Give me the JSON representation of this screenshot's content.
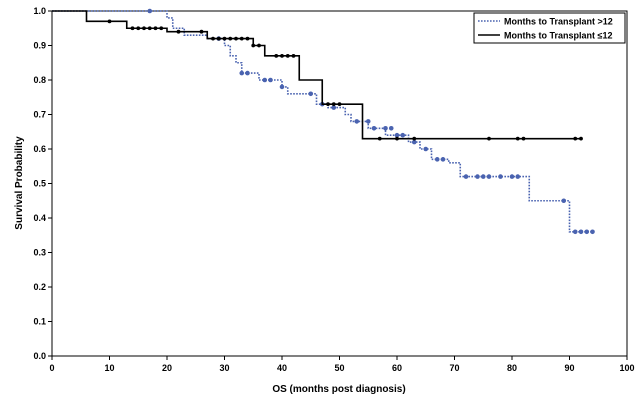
{
  "chart_data": {
    "type": "line",
    "subtype": "kaplan-meier step curve",
    "xlabel": "OS (months post diagnosis)",
    "ylabel": "Survival Probability",
    "xlim": [
      0,
      100
    ],
    "ylim": [
      0,
      1.0
    ],
    "x_ticks": [
      "0",
      "10",
      "20",
      "30",
      "40",
      "50",
      "60",
      "70",
      "80",
      "90",
      "100"
    ],
    "y_ticks": [
      "0.0",
      "0.1",
      "0.2",
      "0.3",
      "0.4",
      "0.5",
      "0.6",
      "0.7",
      "0.8",
      "0.9",
      "1.0"
    ],
    "grid": false,
    "legend_position": "top-right",
    "series": [
      {
        "name": "Months to Transplant >12",
        "color": "#4a63b0",
        "line_style": "dotted",
        "steps": [
          [
            0,
            1.0
          ],
          [
            20,
            0.98
          ],
          [
            21,
            0.95
          ],
          [
            23,
            0.93
          ],
          [
            27,
            0.92
          ],
          [
            30,
            0.9
          ],
          [
            31,
            0.87
          ],
          [
            32,
            0.85
          ],
          [
            33,
            0.82
          ],
          [
            36,
            0.8
          ],
          [
            40,
            0.78
          ],
          [
            41,
            0.76
          ],
          [
            46,
            0.73
          ],
          [
            48,
            0.72
          ],
          [
            51,
            0.7
          ],
          [
            52,
            0.68
          ],
          [
            55,
            0.66
          ],
          [
            58,
            0.64
          ],
          [
            62,
            0.62
          ],
          [
            64,
            0.6
          ],
          [
            66,
            0.57
          ],
          [
            69,
            0.56
          ],
          [
            71,
            0.52
          ],
          [
            82,
            0.52
          ],
          [
            83,
            0.45
          ],
          [
            89,
            0.45
          ],
          [
            90,
            0.36
          ],
          [
            94,
            0.36
          ]
        ],
        "censored": [
          [
            17,
            1.0
          ],
          [
            29,
            0.92
          ],
          [
            33,
            0.82
          ],
          [
            34,
            0.82
          ],
          [
            37,
            0.8
          ],
          [
            38,
            0.8
          ],
          [
            40,
            0.78
          ],
          [
            45,
            0.76
          ],
          [
            47,
            0.73
          ],
          [
            49,
            0.72
          ],
          [
            53,
            0.68
          ],
          [
            55,
            0.68
          ],
          [
            56,
            0.66
          ],
          [
            58,
            0.66
          ],
          [
            59,
            0.66
          ],
          [
            60,
            0.64
          ],
          [
            61,
            0.64
          ],
          [
            63,
            0.62
          ],
          [
            65,
            0.6
          ],
          [
            67,
            0.57
          ],
          [
            68,
            0.57
          ],
          [
            72,
            0.52
          ],
          [
            74,
            0.52
          ],
          [
            75,
            0.52
          ],
          [
            76,
            0.52
          ],
          [
            78,
            0.52
          ],
          [
            80,
            0.52
          ],
          [
            81,
            0.52
          ],
          [
            89,
            0.45
          ],
          [
            91,
            0.36
          ],
          [
            92,
            0.36
          ],
          [
            93,
            0.36
          ],
          [
            94,
            0.36
          ]
        ]
      },
      {
        "name": "Months to Transplant ≤12",
        "color": "#000000",
        "line_style": "solid",
        "steps": [
          [
            0,
            1.0
          ],
          [
            6,
            0.97
          ],
          [
            9,
            0.97
          ],
          [
            13,
            0.95
          ],
          [
            19,
            0.95
          ],
          [
            20,
            0.94
          ],
          [
            26,
            0.94
          ],
          [
            27,
            0.92
          ],
          [
            35,
            0.9
          ],
          [
            37,
            0.87
          ],
          [
            43,
            0.8
          ],
          [
            47,
            0.73
          ],
          [
            53,
            0.73
          ],
          [
            54,
            0.63
          ],
          [
            92,
            0.63
          ]
        ],
        "censored": [
          [
            10,
            0.97
          ],
          [
            14,
            0.95
          ],
          [
            15,
            0.95
          ],
          [
            16,
            0.95
          ],
          [
            17,
            0.95
          ],
          [
            18,
            0.95
          ],
          [
            19,
            0.95
          ],
          [
            22,
            0.94
          ],
          [
            26,
            0.94
          ],
          [
            28,
            0.92
          ],
          [
            29,
            0.92
          ],
          [
            30,
            0.92
          ],
          [
            31,
            0.92
          ],
          [
            32,
            0.92
          ],
          [
            33,
            0.92
          ],
          [
            34,
            0.92
          ],
          [
            35,
            0.9
          ],
          [
            36,
            0.9
          ],
          [
            39,
            0.87
          ],
          [
            40,
            0.87
          ],
          [
            41,
            0.87
          ],
          [
            42,
            0.87
          ],
          [
            48,
            0.73
          ],
          [
            49,
            0.73
          ],
          [
            50,
            0.73
          ],
          [
            57,
            0.63
          ],
          [
            60,
            0.63
          ],
          [
            63,
            0.63
          ],
          [
            76,
            0.63
          ],
          [
            81,
            0.63
          ],
          [
            82,
            0.63
          ],
          [
            91,
            0.63
          ],
          [
            92,
            0.63
          ]
        ]
      }
    ]
  }
}
